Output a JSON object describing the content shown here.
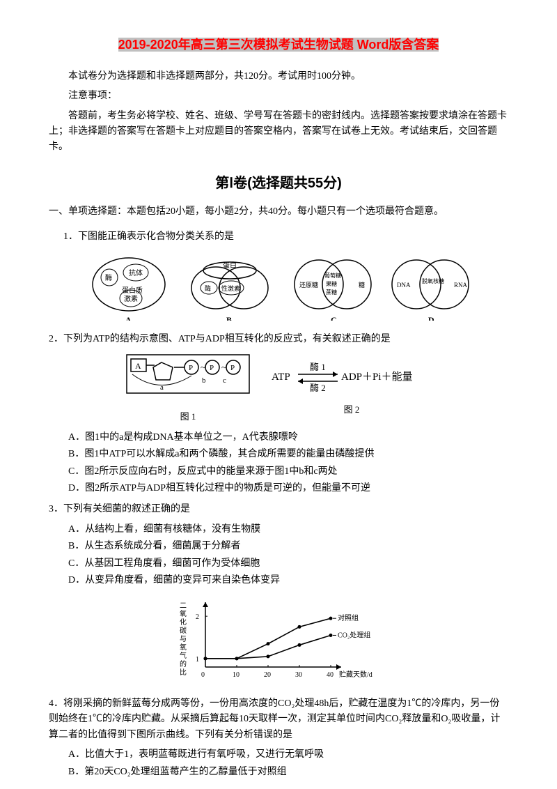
{
  "title_highlight": "2019-2020年高三第三次模拟考试生物试题 Word版含答案",
  "intro": "本试卷分为选择题和非选择题两部分，共120分。考试用时100分钟。",
  "note_header": "注意事项：",
  "note_body": "答题前，考生务必将学校、姓名、班级、学号写在答题卡的密封线内。选择题答案按要求填涂在答题卡上；非选择题的答案写在答题卡上对应题目的答案空格内，答案写在试卷上无效。考试结束后，交回答题卡。",
  "section_title": "第Ⅰ卷(选择题共55分)",
  "instruction": "一、单项选择题：本题包括20小题，每小题2分，共40分。每小题只有一个选项最符合题意。",
  "q1": {
    "text": "1．下图能正确表示化合物分类关系的是",
    "diagram_labels": {
      "a_outer": "蛋白质",
      "a_inner1": "酶",
      "a_inner2": "抗体",
      "a_inner3": "激素",
      "b_outer": "蛋白",
      "b_left": "酶",
      "b_right": "性激素",
      "c_left": "还原糖",
      "c_right_top": "葡萄糖",
      "c_right_mid": "果糖",
      "c_right_bot": "蔗糖",
      "c_right": "糖",
      "d_left": "DNA",
      "d_mid": "脱氧核糖",
      "d_right": "RNA",
      "label_a": "A",
      "label_b": "B",
      "label_c": "C",
      "label_d": "D"
    }
  },
  "q2": {
    "text": "2．下列为ATP的结构示意图、ATP与ADP相互转化的反应式，有关叙述正确的是",
    "fig1_label": "图 1",
    "fig2_label": "图 2",
    "fig2_formula_left": "ATP",
    "fig2_formula_top": "酶 1",
    "fig2_formula_bot": "酶 2",
    "fig2_formula_right": "ADP＋Pi＋能量",
    "options": {
      "a": "A．图1中的a是构成DNA基本单位之一，A代表腺嘌呤",
      "b": "B．图1中ATP可以水解成a和两个磷酸，其合成所需要的能量由磷酸提供",
      "c": "C．图2所示反应向右时，反应式中的能量来源于图1中b和c两处",
      "d": "D．图2所示ATP与ADP相互转化过程中的物质是可逆的，但能量不可逆"
    }
  },
  "q3": {
    "text": "3．下列有关细菌的叙述正确的是",
    "options": {
      "a": "A．从结构上看，细菌有核糖体，没有生物膜",
      "b": "B．从生态系统成分看，细菌属于分解者",
      "c": "C．从基因工程角度看，细菌可作为受体细胞",
      "d": "D．从变异角度看，细菌的变异可来自染色体变异"
    }
  },
  "q4": {
    "chart": {
      "ylabel": "二氧化碳与氧气的比",
      "xlabel": "贮藏天数/d",
      "legend_top": "对照组",
      "legend_bot": "CO₂处理组",
      "x_ticks": [
        "0",
        "10",
        "20",
        "30",
        "40"
      ],
      "y_ticks": [
        "1",
        "2"
      ],
      "series1_x": [
        0,
        10,
        20,
        30,
        40
      ],
      "series1_y": [
        1.0,
        1.0,
        1.35,
        1.75,
        1.95
      ],
      "series2_x": [
        0,
        10,
        20,
        30,
        40
      ],
      "series2_y": [
        1.0,
        1.0,
        1.05,
        1.32,
        1.55
      ],
      "line_color": "#000000",
      "axis_color": "#000000",
      "bg_color": "#ffffff"
    },
    "text": "4．将刚采摘的新鲜蓝莓分成两等份，一份用高浓度的CO₂处理48h后，贮藏在温度为1℃的冷库内，另一份则始终在1℃的冷库内贮藏。从采摘后算起每10天取样一次，测定其单位时间内CO₂释放量和O₂吸收量，计算二者的比值得到下图所示曲线。下列有关分析错误的是",
    "options": {
      "a": "A．比值大于1，表明蓝莓既进行有氧呼吸，又进行无氧呼吸",
      "b": "B．第20天CO₂处理组蓝莓产生的乙醇量低于对照组"
    }
  }
}
